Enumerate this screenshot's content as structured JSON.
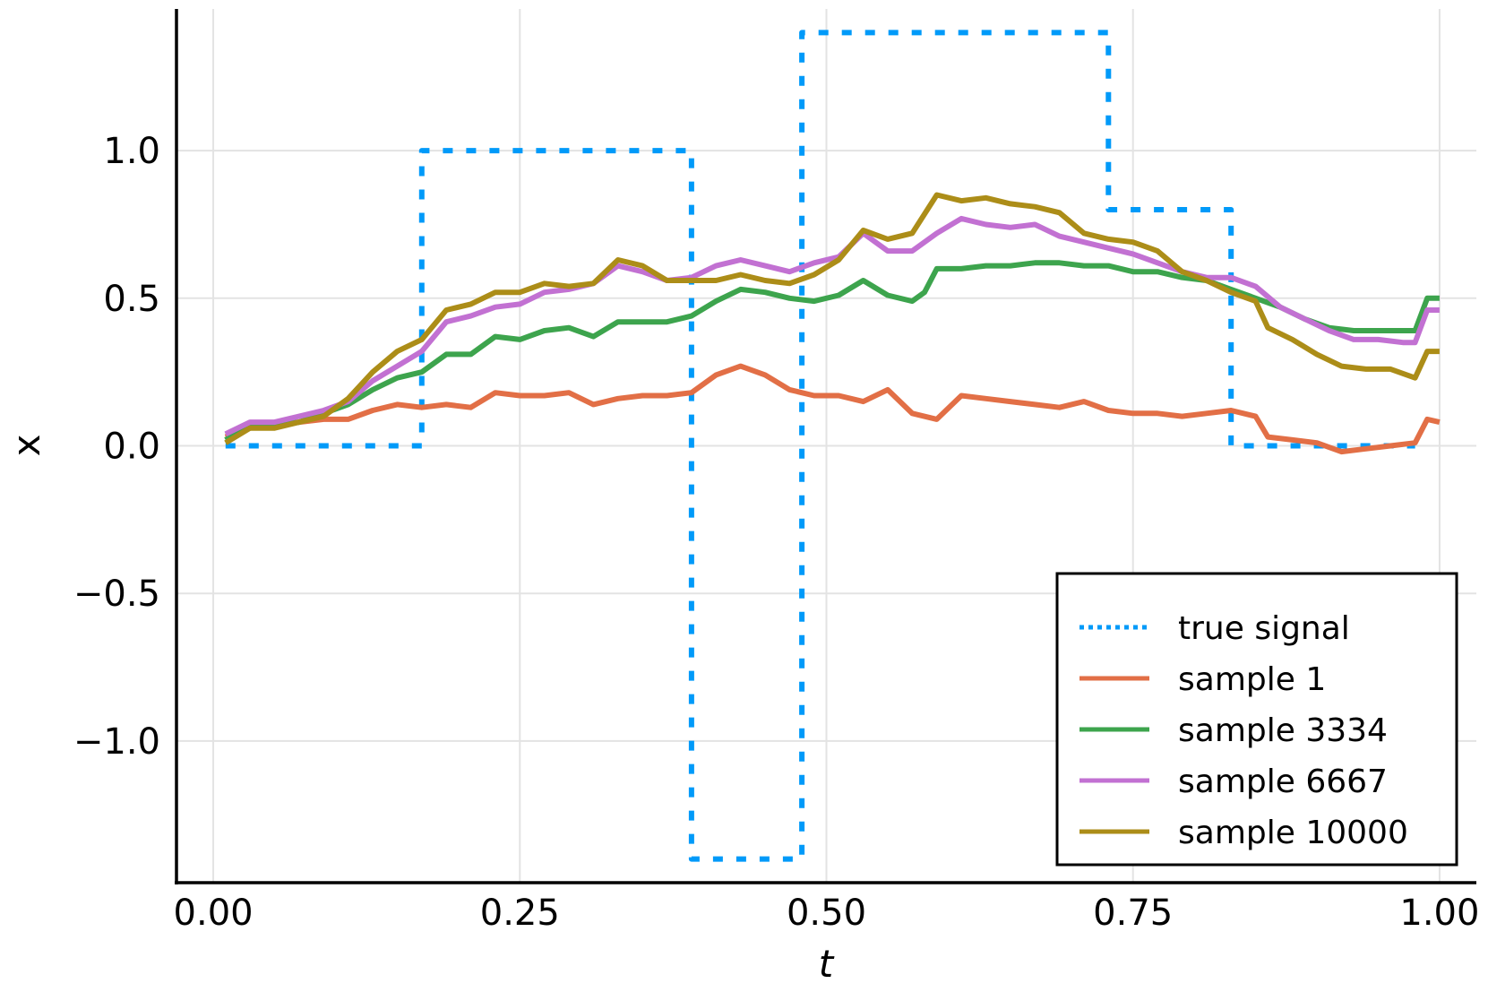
{
  "chart_data": {
    "type": "line",
    "xlabel": "t",
    "ylabel": "x",
    "xlim": [
      -0.03,
      1.03
    ],
    "ylim": [
      -1.48,
      1.48
    ],
    "grid": true,
    "legend_position": "bottom-right",
    "x_ticks": [
      {
        "value": 0.0,
        "label": "0.00"
      },
      {
        "value": 0.25,
        "label": "0.25"
      },
      {
        "value": 0.5,
        "label": "0.50"
      },
      {
        "value": 0.75,
        "label": "0.75"
      },
      {
        "value": 1.0,
        "label": "1.00"
      }
    ],
    "y_ticks": [
      {
        "value": 1.0,
        "label": "1.0"
      },
      {
        "value": 0.5,
        "label": "0.5"
      },
      {
        "value": 0.0,
        "label": "0.0"
      },
      {
        "value": -0.5,
        "label": "−0.5"
      },
      {
        "value": -1.0,
        "label": "−1.0"
      }
    ],
    "series": [
      {
        "name": "true signal",
        "color": "#009af9",
        "style": "dotted",
        "points": [
          [
            0.01,
            0
          ],
          [
            0.17,
            0
          ],
          [
            0.17,
            1.0
          ],
          [
            0.39,
            1.0
          ],
          [
            0.39,
            -1.4
          ],
          [
            0.48,
            -1.4
          ],
          [
            0.48,
            1.4
          ],
          [
            0.73,
            1.4
          ],
          [
            0.73,
            0.8
          ],
          [
            0.83,
            0.8
          ],
          [
            0.83,
            0
          ],
          [
            0.98,
            0
          ]
        ]
      },
      {
        "name": "sample 1",
        "color": "#e26f46",
        "style": "solid",
        "points": [
          [
            0.01,
            0.03
          ],
          [
            0.03,
            0.06
          ],
          [
            0.05,
            0.07
          ],
          [
            0.07,
            0.08
          ],
          [
            0.09,
            0.09
          ],
          [
            0.11,
            0.09
          ],
          [
            0.13,
            0.12
          ],
          [
            0.15,
            0.14
          ],
          [
            0.17,
            0.13
          ],
          [
            0.19,
            0.14
          ],
          [
            0.21,
            0.13
          ],
          [
            0.23,
            0.18
          ],
          [
            0.25,
            0.17
          ],
          [
            0.27,
            0.17
          ],
          [
            0.29,
            0.18
          ],
          [
            0.31,
            0.14
          ],
          [
            0.33,
            0.16
          ],
          [
            0.35,
            0.17
          ],
          [
            0.37,
            0.17
          ],
          [
            0.39,
            0.18
          ],
          [
            0.41,
            0.24
          ],
          [
            0.43,
            0.27
          ],
          [
            0.45,
            0.24
          ],
          [
            0.47,
            0.19
          ],
          [
            0.49,
            0.17
          ],
          [
            0.51,
            0.17
          ],
          [
            0.53,
            0.15
          ],
          [
            0.55,
            0.19
          ],
          [
            0.57,
            0.11
          ],
          [
            0.59,
            0.09
          ],
          [
            0.61,
            0.17
          ],
          [
            0.63,
            0.16
          ],
          [
            0.65,
            0.15
          ],
          [
            0.67,
            0.14
          ],
          [
            0.69,
            0.13
          ],
          [
            0.71,
            0.15
          ],
          [
            0.73,
            0.12
          ],
          [
            0.75,
            0.11
          ],
          [
            0.77,
            0.11
          ],
          [
            0.79,
            0.1
          ],
          [
            0.81,
            0.11
          ],
          [
            0.83,
            0.12
          ],
          [
            0.85,
            0.1
          ],
          [
            0.86,
            0.03
          ],
          [
            0.88,
            0.02
          ],
          [
            0.9,
            0.01
          ],
          [
            0.92,
            -0.02
          ],
          [
            0.94,
            -0.01
          ],
          [
            0.96,
            0.0
          ],
          [
            0.98,
            0.01
          ],
          [
            0.99,
            0.09
          ],
          [
            1.0,
            0.08
          ]
        ]
      },
      {
        "name": "sample 3334",
        "color": "#3da44d",
        "style": "solid",
        "points": [
          [
            0.01,
            0.02
          ],
          [
            0.03,
            0.07
          ],
          [
            0.05,
            0.07
          ],
          [
            0.07,
            0.08
          ],
          [
            0.09,
            0.11
          ],
          [
            0.11,
            0.14
          ],
          [
            0.13,
            0.19
          ],
          [
            0.15,
            0.23
          ],
          [
            0.17,
            0.25
          ],
          [
            0.19,
            0.31
          ],
          [
            0.21,
            0.31
          ],
          [
            0.23,
            0.37
          ],
          [
            0.25,
            0.36
          ],
          [
            0.27,
            0.39
          ],
          [
            0.29,
            0.4
          ],
          [
            0.31,
            0.37
          ],
          [
            0.33,
            0.42
          ],
          [
            0.35,
            0.42
          ],
          [
            0.37,
            0.42
          ],
          [
            0.39,
            0.44
          ],
          [
            0.41,
            0.49
          ],
          [
            0.43,
            0.53
          ],
          [
            0.45,
            0.52
          ],
          [
            0.47,
            0.5
          ],
          [
            0.49,
            0.49
          ],
          [
            0.51,
            0.51
          ],
          [
            0.53,
            0.56
          ],
          [
            0.55,
            0.51
          ],
          [
            0.57,
            0.49
          ],
          [
            0.58,
            0.52
          ],
          [
            0.59,
            0.6
          ],
          [
            0.61,
            0.6
          ],
          [
            0.63,
            0.61
          ],
          [
            0.65,
            0.61
          ],
          [
            0.67,
            0.62
          ],
          [
            0.69,
            0.62
          ],
          [
            0.71,
            0.61
          ],
          [
            0.73,
            0.61
          ],
          [
            0.75,
            0.59
          ],
          [
            0.77,
            0.59
          ],
          [
            0.79,
            0.57
          ],
          [
            0.81,
            0.56
          ],
          [
            0.83,
            0.53
          ],
          [
            0.85,
            0.5
          ],
          [
            0.87,
            0.47
          ],
          [
            0.89,
            0.43
          ],
          [
            0.91,
            0.4
          ],
          [
            0.93,
            0.39
          ],
          [
            0.95,
            0.39
          ],
          [
            0.97,
            0.39
          ],
          [
            0.98,
            0.39
          ],
          [
            0.99,
            0.5
          ],
          [
            1.0,
            0.5
          ]
        ]
      },
      {
        "name": "sample 6667",
        "color": "#c271d2",
        "style": "solid",
        "points": [
          [
            0.01,
            0.04
          ],
          [
            0.03,
            0.08
          ],
          [
            0.05,
            0.08
          ],
          [
            0.07,
            0.1
          ],
          [
            0.09,
            0.12
          ],
          [
            0.11,
            0.15
          ],
          [
            0.13,
            0.22
          ],
          [
            0.15,
            0.27
          ],
          [
            0.17,
            0.32
          ],
          [
            0.19,
            0.42
          ],
          [
            0.21,
            0.44
          ],
          [
            0.23,
            0.47
          ],
          [
            0.25,
            0.48
          ],
          [
            0.27,
            0.52
          ],
          [
            0.29,
            0.53
          ],
          [
            0.31,
            0.55
          ],
          [
            0.33,
            0.61
          ],
          [
            0.35,
            0.59
          ],
          [
            0.37,
            0.56
          ],
          [
            0.39,
            0.57
          ],
          [
            0.41,
            0.61
          ],
          [
            0.43,
            0.63
          ],
          [
            0.45,
            0.61
          ],
          [
            0.47,
            0.59
          ],
          [
            0.49,
            0.62
          ],
          [
            0.51,
            0.64
          ],
          [
            0.53,
            0.72
          ],
          [
            0.55,
            0.66
          ],
          [
            0.57,
            0.66
          ],
          [
            0.59,
            0.72
          ],
          [
            0.61,
            0.77
          ],
          [
            0.63,
            0.75
          ],
          [
            0.65,
            0.74
          ],
          [
            0.67,
            0.75
          ],
          [
            0.69,
            0.71
          ],
          [
            0.71,
            0.69
          ],
          [
            0.73,
            0.67
          ],
          [
            0.75,
            0.65
          ],
          [
            0.77,
            0.62
          ],
          [
            0.79,
            0.59
          ],
          [
            0.81,
            0.57
          ],
          [
            0.83,
            0.57
          ],
          [
            0.85,
            0.54
          ],
          [
            0.87,
            0.47
          ],
          [
            0.89,
            0.43
          ],
          [
            0.91,
            0.39
          ],
          [
            0.93,
            0.36
          ],
          [
            0.95,
            0.36
          ],
          [
            0.97,
            0.35
          ],
          [
            0.98,
            0.35
          ],
          [
            0.99,
            0.46
          ],
          [
            1.0,
            0.46
          ]
        ]
      },
      {
        "name": "sample 10000",
        "color": "#ac8d18",
        "style": "solid",
        "points": [
          [
            0.01,
            0.01
          ],
          [
            0.03,
            0.06
          ],
          [
            0.05,
            0.06
          ],
          [
            0.07,
            0.08
          ],
          [
            0.09,
            0.1
          ],
          [
            0.11,
            0.16
          ],
          [
            0.13,
            0.25
          ],
          [
            0.15,
            0.32
          ],
          [
            0.17,
            0.36
          ],
          [
            0.19,
            0.46
          ],
          [
            0.21,
            0.48
          ],
          [
            0.23,
            0.52
          ],
          [
            0.25,
            0.52
          ],
          [
            0.27,
            0.55
          ],
          [
            0.29,
            0.54
          ],
          [
            0.31,
            0.55
          ],
          [
            0.33,
            0.63
          ],
          [
            0.35,
            0.61
          ],
          [
            0.37,
            0.56
          ],
          [
            0.39,
            0.56
          ],
          [
            0.41,
            0.56
          ],
          [
            0.43,
            0.58
          ],
          [
            0.45,
            0.56
          ],
          [
            0.47,
            0.55
          ],
          [
            0.49,
            0.58
          ],
          [
            0.51,
            0.63
          ],
          [
            0.53,
            0.73
          ],
          [
            0.55,
            0.7
          ],
          [
            0.57,
            0.72
          ],
          [
            0.59,
            0.85
          ],
          [
            0.61,
            0.83
          ],
          [
            0.63,
            0.84
          ],
          [
            0.65,
            0.82
          ],
          [
            0.67,
            0.81
          ],
          [
            0.69,
            0.79
          ],
          [
            0.71,
            0.72
          ],
          [
            0.73,
            0.7
          ],
          [
            0.75,
            0.69
          ],
          [
            0.77,
            0.66
          ],
          [
            0.79,
            0.59
          ],
          [
            0.81,
            0.56
          ],
          [
            0.83,
            0.52
          ],
          [
            0.85,
            0.49
          ],
          [
            0.86,
            0.4
          ],
          [
            0.88,
            0.36
          ],
          [
            0.9,
            0.31
          ],
          [
            0.92,
            0.27
          ],
          [
            0.94,
            0.26
          ],
          [
            0.96,
            0.26
          ],
          [
            0.98,
            0.23
          ],
          [
            0.99,
            0.32
          ],
          [
            1.0,
            0.32
          ]
        ]
      }
    ]
  }
}
